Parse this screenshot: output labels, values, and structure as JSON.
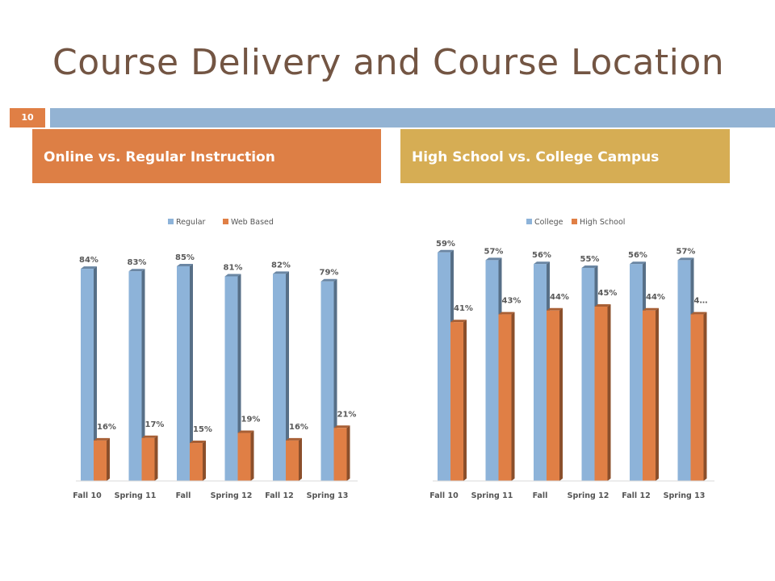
{
  "slide": {
    "title": "Course Delivery and Course Location",
    "number": "10"
  },
  "headers": {
    "left": "Online vs. Regular Instruction",
    "right": "High School vs. College Campus"
  },
  "colors": {
    "title": "#735543",
    "accent_orange": "#dd7f45",
    "accent_gold": "#d6ad54",
    "bar_blue": "#93b3d3",
    "series_blue": "#8db3d9",
    "series_orange": "#e07f45"
  },
  "chart_data": [
    {
      "type": "bar",
      "title": "",
      "categories": [
        "Fall 10",
        "Spring 11",
        "Fall",
        "Spring 12",
        "Fall 12",
        "Spring 13"
      ],
      "series": [
        {
          "name": "Regular",
          "values": [
            84,
            83,
            85,
            81,
            82,
            79
          ],
          "labels": [
            "84%",
            "83%",
            "85%",
            "81%",
            "82%",
            "79%"
          ]
        },
        {
          "name": "Web Based",
          "values": [
            16,
            17,
            15,
            19,
            16,
            21
          ],
          "labels": [
            "16%",
            "17%",
            "15%",
            "19%",
            "16%",
            "21%"
          ]
        }
      ],
      "ylim": [
        0,
        100
      ],
      "legend": "top-center",
      "grid": false,
      "style": "3d-column"
    },
    {
      "type": "bar",
      "title": "",
      "categories": [
        "Fall 10",
        "Spring 11",
        "Fall",
        "Spring 12",
        "Fall 12",
        "Spring 13"
      ],
      "series": [
        {
          "name": "College",
          "values": [
            59,
            57,
            56,
            55,
            56,
            57
          ],
          "labels": [
            "59%",
            "57%",
            "56%",
            "55%",
            "56%",
            "57%"
          ]
        },
        {
          "name": "High School",
          "values": [
            41,
            43,
            44,
            45,
            44,
            43
          ],
          "labels": [
            "41%",
            "43%",
            "44%",
            "45%",
            "44%",
            "4…"
          ]
        }
      ],
      "ylim": [
        0,
        60
      ],
      "legend": "top-center",
      "grid": false,
      "style": "3d-column"
    }
  ]
}
